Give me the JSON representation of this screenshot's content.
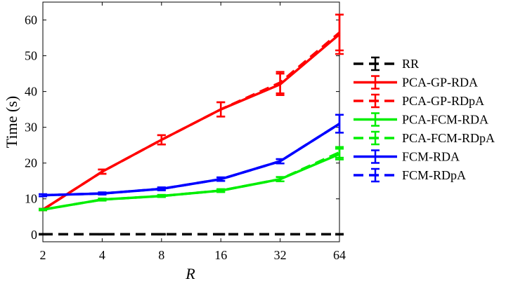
{
  "chart_data": {
    "type": "line",
    "title": "",
    "xlabel": "R",
    "ylabel": "Time (s)",
    "x": [
      2,
      4,
      8,
      16,
      32,
      64
    ],
    "x_tick_labels": [
      "2",
      "4",
      "8",
      "16",
      "32",
      "64"
    ],
    "x_scale": "log2",
    "xlim": [
      2,
      64
    ],
    "ylim": [
      -2,
      65
    ],
    "y_ticks": [
      0,
      10,
      20,
      30,
      40,
      50,
      60
    ],
    "y_tick_labels": [
      "0",
      "10",
      "20",
      "30",
      "40",
      "50",
      "60"
    ],
    "grid": false,
    "legend_position": "outside-right",
    "series": [
      {
        "name": "RR",
        "color": "#000000",
        "dash": true,
        "values": [
          0.1,
          0.1,
          0.1,
          0.1,
          0.1,
          0.1
        ],
        "err": [
          0.1,
          0.1,
          0.1,
          0.1,
          0.1,
          0.1
        ]
      },
      {
        "name": "PCA-GP-RDA",
        "color": "#ff0000",
        "dash": false,
        "values": [
          7,
          17.6,
          26.5,
          35,
          42,
          56
        ],
        "err": [
          0.2,
          0.6,
          1.3,
          2,
          3,
          5.5
        ]
      },
      {
        "name": "PCA-GP-RDpA",
        "color": "#ff0000",
        "dash": true,
        "values": [
          7,
          17.6,
          26.5,
          35,
          42.5,
          56.5
        ],
        "err": [
          0.2,
          0.6,
          1.3,
          2,
          3,
          5
        ]
      },
      {
        "name": "PCA-FCM-RDA",
        "color": "#00ee00",
        "dash": false,
        "values": [
          7,
          9.8,
          10.8,
          12.3,
          15.5,
          22.5
        ],
        "err": [
          0.2,
          0.3,
          0.3,
          0.4,
          0.6,
          1.5
        ]
      },
      {
        "name": "PCA-FCM-RDpA",
        "color": "#00ee00",
        "dash": true,
        "values": [
          7,
          9.8,
          10.8,
          12.3,
          15.5,
          23
        ],
        "err": [
          0.2,
          0.3,
          0.3,
          0.4,
          0.6,
          1.5
        ]
      },
      {
        "name": "FCM-RDA",
        "color": "#0000ff",
        "dash": false,
        "values": [
          11,
          11.5,
          12.8,
          15.5,
          20.5,
          31
        ],
        "err": [
          0.3,
          0.3,
          0.4,
          0.5,
          0.6,
          2.5
        ]
      },
      {
        "name": "FCM-RDpA",
        "color": "#0000ff",
        "dash": true,
        "values": [
          11,
          11.5,
          12.8,
          15.5,
          20.5,
          31
        ],
        "err": [
          0.3,
          0.3,
          0.4,
          0.5,
          0.6,
          2.5
        ]
      }
    ]
  }
}
